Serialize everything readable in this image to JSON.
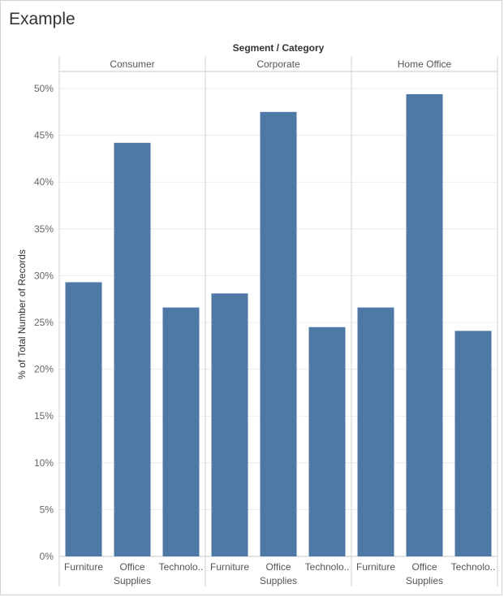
{
  "page": {
    "title": "Example"
  },
  "chart_data": {
    "type": "bar",
    "header": "Segment / Category",
    "ylabel": "% of Total Number of Records",
    "ylim": [
      0,
      52
    ],
    "yticks": [
      0,
      5,
      10,
      15,
      20,
      25,
      30,
      35,
      40,
      45,
      50
    ],
    "ytick_labels": [
      "0%",
      "5%",
      "10%",
      "15%",
      "20%",
      "25%",
      "30%",
      "35%",
      "40%",
      "45%",
      "50%"
    ],
    "grid": true,
    "bar_color": "#4e79a7",
    "panels": [
      {
        "name": "Consumer",
        "categories": [
          [
            "Furniture"
          ],
          [
            "Office",
            "Supplies"
          ],
          [
            "Technolo.."
          ]
        ],
        "values": [
          29.3,
          44.2,
          26.6
        ]
      },
      {
        "name": "Corporate",
        "categories": [
          [
            "Furniture"
          ],
          [
            "Office",
            "Supplies"
          ],
          [
            "Technolo.."
          ]
        ],
        "values": [
          28.1,
          47.5,
          24.5
        ]
      },
      {
        "name": "Home Office",
        "categories": [
          [
            "Furniture"
          ],
          [
            "Office",
            "Supplies"
          ],
          [
            "Technolo.."
          ]
        ],
        "values": [
          26.6,
          49.4,
          24.1
        ]
      }
    ]
  }
}
